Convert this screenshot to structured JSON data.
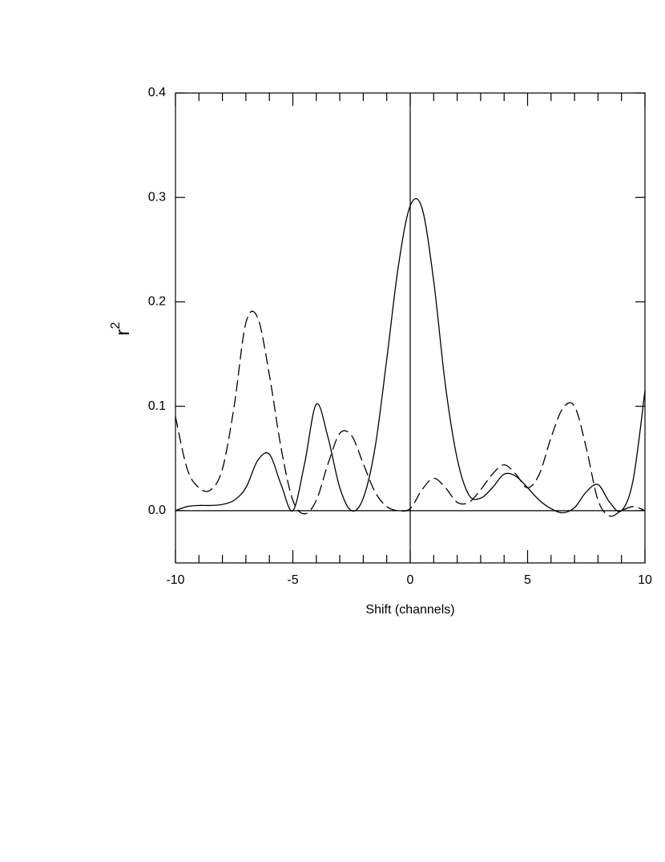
{
  "chart_data": {
    "type": "line",
    "xlabel": "Shift (channels)",
    "ylabel": "r",
    "ylabel_sup": "2",
    "x": [
      -10,
      -9.5,
      -9,
      -8.5,
      -8,
      -7.5,
      -7,
      -6.5,
      -6,
      -5.5,
      -5,
      -4.5,
      -4,
      -3.5,
      -3,
      -2.5,
      -2,
      -1.5,
      -1,
      -0.5,
      0,
      0.5,
      1,
      1.5,
      2,
      2.5,
      3,
      3.5,
      4,
      4.5,
      5,
      5.5,
      6,
      6.5,
      7,
      7.5,
      8,
      8.5,
      9,
      9.5,
      10
    ],
    "series": [
      {
        "color": "#000000",
        "dash": "solid",
        "values": [
          0.0,
          0.004,
          0.005,
          0.005,
          0.006,
          0.01,
          0.022,
          0.048,
          0.054,
          0.025,
          0.0,
          0.045,
          0.102,
          0.07,
          0.022,
          0.0,
          0.012,
          0.06,
          0.145,
          0.235,
          0.292,
          0.29,
          0.22,
          0.12,
          0.05,
          0.015,
          0.012,
          0.022,
          0.035,
          0.033,
          0.022,
          0.01,
          0.002,
          -0.002,
          0.003,
          0.018,
          0.025,
          0.008,
          0.0,
          0.03,
          0.115
        ]
      },
      {
        "color": "#000000",
        "dash": "dashed",
        "values": [
          0.09,
          0.04,
          0.022,
          0.02,
          0.04,
          0.1,
          0.18,
          0.185,
          0.13,
          0.06,
          0.01,
          -0.003,
          0.01,
          0.045,
          0.074,
          0.072,
          0.045,
          0.018,
          0.004,
          0.0,
          0.002,
          0.02,
          0.031,
          0.022,
          0.008,
          0.008,
          0.02,
          0.035,
          0.044,
          0.035,
          0.022,
          0.035,
          0.07,
          0.098,
          0.1,
          0.06,
          0.01,
          -0.005,
          0.0,
          0.004,
          0.0
        ]
      }
    ],
    "xlim": [
      -10,
      10
    ],
    "xticks": [
      -10,
      -5,
      0,
      5,
      10
    ],
    "xticks_minor": [
      -9,
      -8,
      -7,
      -6,
      -4,
      -3,
      -2,
      -1,
      1,
      2,
      3,
      4,
      6,
      7,
      8,
      9
    ],
    "ylim": [
      -0.05,
      0.4
    ],
    "yticks": [
      {
        "value": 0,
        "label": "0.0"
      },
      0.1,
      0.2,
      0.3,
      0.4
    ],
    "hlines": [
      0
    ],
    "vlines": [
      0
    ],
    "grid": false
  }
}
